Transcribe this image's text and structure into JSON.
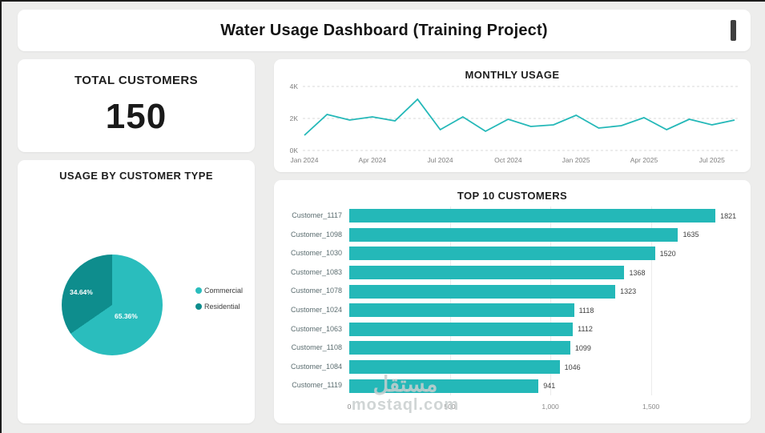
{
  "header": {
    "title": "Water Usage Dashboard (Training Project)"
  },
  "accent": {
    "teal": "#24b8b8",
    "teal_dark": "#0e8d8d"
  },
  "total_customers": {
    "title": "TOTAL CUSTOMERS",
    "value": "150"
  },
  "watermark": {
    "line1": "مستقل",
    "line2": "mostaql.com"
  },
  "chart_data": [
    {
      "id": "usage_by_customer_type",
      "type": "pie",
      "title": "USAGE BY CUSTOMER TYPE",
      "legend_position": "right",
      "slices": [
        {
          "label": "Commercial",
          "value": 65.36,
          "display": "65.36%",
          "color": "#2abdbd"
        },
        {
          "label": "Residential",
          "value": 34.64,
          "display": "34.64%",
          "color": "#0e8d8d"
        }
      ]
    },
    {
      "id": "monthly_usage",
      "type": "line",
      "title": "MONTHLY USAGE",
      "line_color": "#24b8b8",
      "ylim": [
        0,
        4000
      ],
      "y_ticks": [
        "0K",
        "2K",
        "4K"
      ],
      "y_tick_values": [
        0,
        2000,
        4000
      ],
      "x": [
        "Jan 2024",
        "Feb 2024",
        "Mar 2024",
        "Apr 2024",
        "May 2024",
        "Jun 2024",
        "Jul 2024",
        "Aug 2024",
        "Sep 2024",
        "Oct 2024",
        "Nov 2024",
        "Dec 2024",
        "Jan 2025",
        "Feb 2025",
        "Mar 2025",
        "Apr 2025",
        "May 2025",
        "Jun 2025",
        "Jul 2025",
        "Aug 2025"
      ],
      "values": [
        950,
        2250,
        1900,
        2100,
        1850,
        3200,
        1300,
        2100,
        1200,
        1950,
        1500,
        1600,
        2200,
        1400,
        1550,
        2050,
        1300,
        1950,
        1600,
        1900
      ],
      "x_tick_labels": [
        "Jan 2024",
        "Apr 2024",
        "Jul 2024",
        "Oct 2024",
        "Jan 2025",
        "Apr 2025",
        "Jul 2025"
      ],
      "x_tick_indices": [
        0,
        3,
        6,
        9,
        12,
        15,
        18
      ],
      "grid": true
    },
    {
      "id": "top_10_customers",
      "type": "bar",
      "title": "TOP 10 CUSTOMERS",
      "orientation": "horizontal",
      "bar_color": "#24b8b8",
      "categories": [
        "Customer_1117",
        "Customer_1098",
        "Customer_1030",
        "Customer_1083",
        "Customer_1078",
        "Customer_1024",
        "Customer_1063",
        "Customer_1108",
        "Customer_1084",
        "Customer_1119"
      ],
      "values": [
        1821,
        1635,
        1520,
        1368,
        1323,
        1118,
        1112,
        1099,
        1046,
        941
      ],
      "xlim": [
        0,
        1900
      ],
      "x_ticks": [
        0,
        500,
        1000,
        1500
      ],
      "x_tick_labels": [
        "0",
        "500",
        "1,000",
        "1,500"
      ],
      "grid": true
    }
  ]
}
